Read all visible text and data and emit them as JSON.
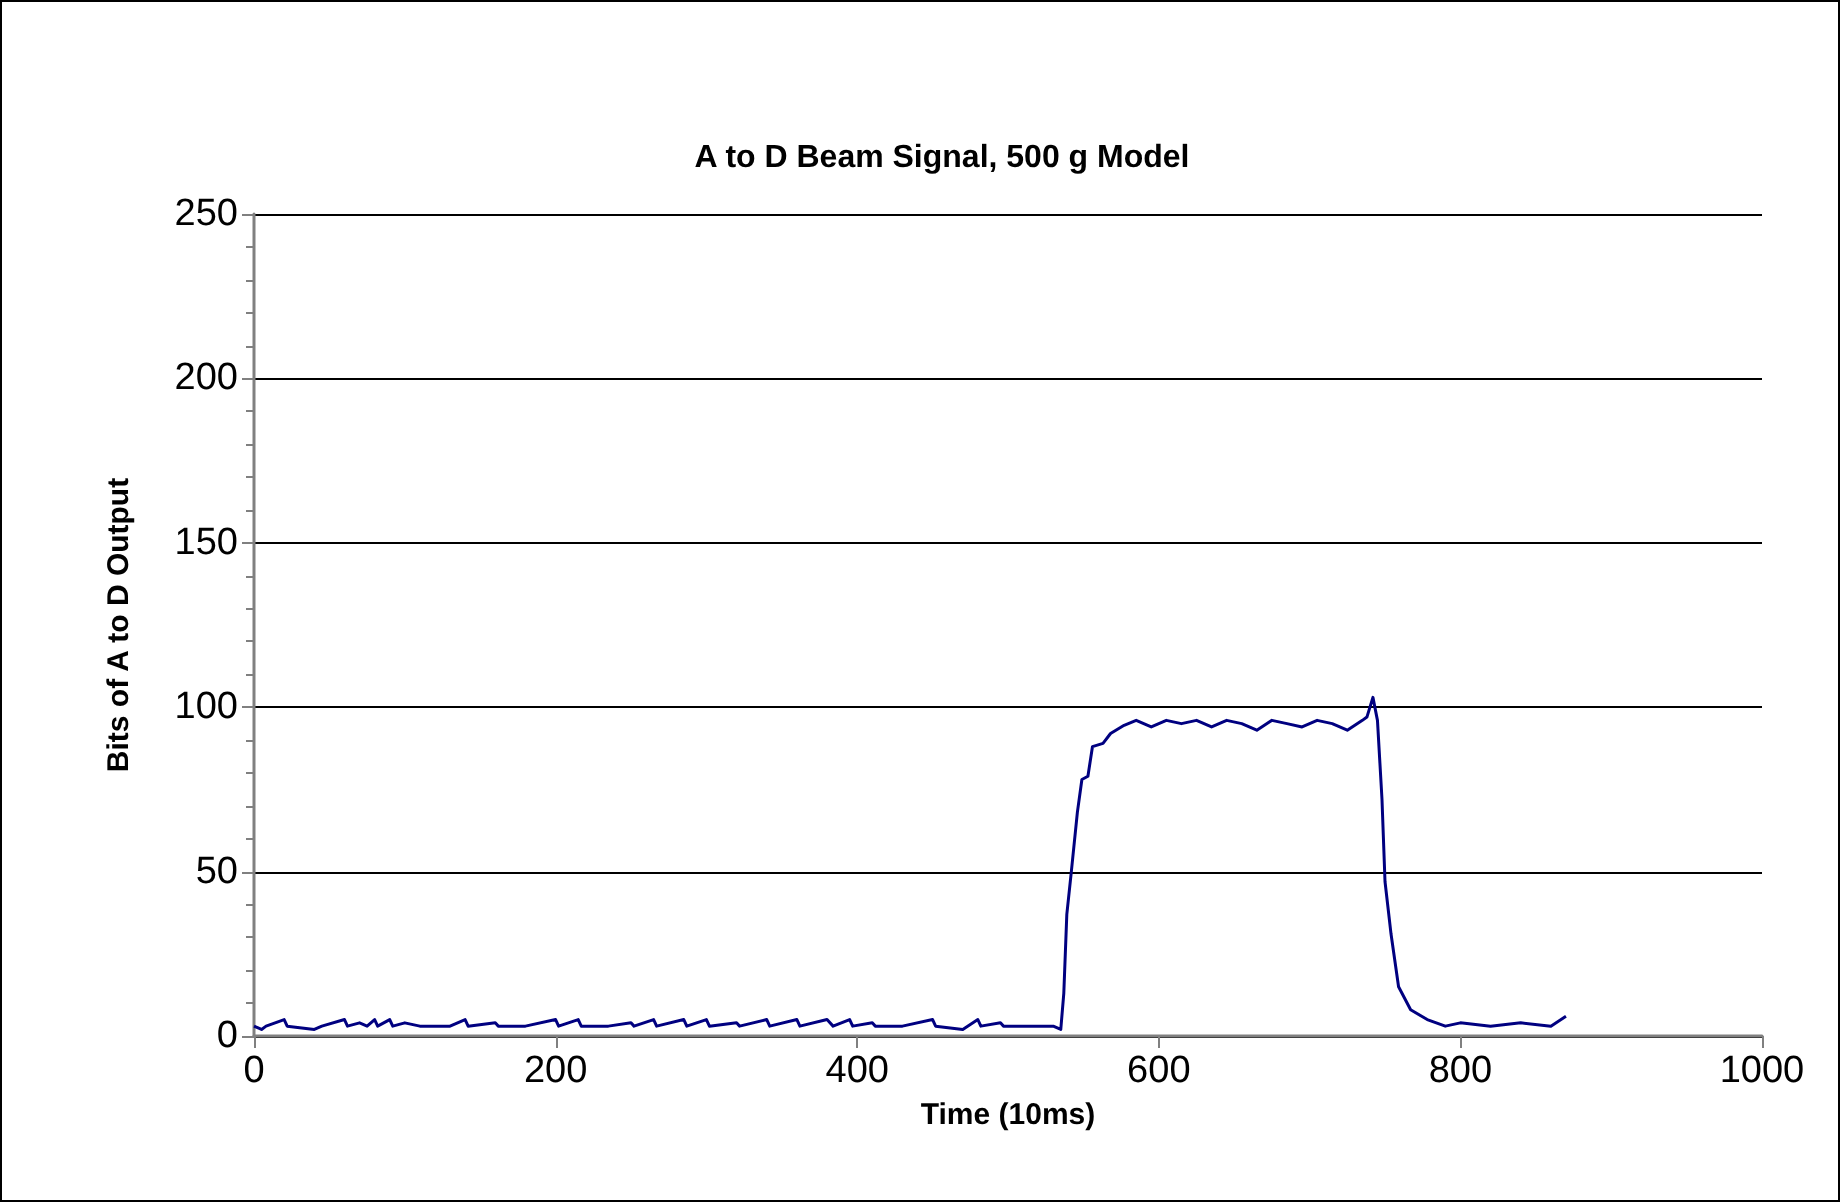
{
  "chart_data": {
    "type": "line",
    "title": "A to D Beam Signal, 500 g Model",
    "xlabel": "Time (10ms)",
    "ylabel": "Bits of A to D Output",
    "xlim": [
      0,
      1000
    ],
    "xticks": [
      0,
      200,
      400,
      600,
      800,
      1000
    ],
    "ylim": [
      0,
      250
    ],
    "yticks": [
      0,
      {
        "value": 10,
        "label": null
      },
      {
        "value": 20,
        "label": null
      },
      {
        "value": 30,
        "label": null
      },
      {
        "value": 40,
        "label": null
      },
      50,
      {
        "value": 60,
        "label": null
      },
      {
        "value": 70,
        "label": null
      },
      {
        "value": 80,
        "label": null
      },
      {
        "value": 90,
        "label": null
      },
      100,
      {
        "value": 110,
        "label": null
      },
      {
        "value": 120,
        "label": null
      },
      {
        "value": 130,
        "label": null
      },
      {
        "value": 140,
        "label": null
      },
      150,
      {
        "value": 160,
        "label": null
      },
      {
        "value": 170,
        "label": null
      },
      {
        "value": 180,
        "label": null
      },
      {
        "value": 190,
        "label": null
      },
      200,
      {
        "value": 210,
        "label": null
      },
      {
        "value": 220,
        "label": null
      },
      {
        "value": 230,
        "label": null
      },
      {
        "value": 240,
        "label": null
      },
      250
    ],
    "grid": "y",
    "marker": "none",
    "line_style": "solid",
    "series": [
      {
        "color": "#000080",
        "x": [
          0,
          5,
          8,
          20,
          22,
          40,
          45,
          60,
          62,
          70,
          75,
          80,
          82,
          90,
          92,
          100,
          110,
          130,
          140,
          142,
          160,
          162,
          180,
          200,
          202,
          215,
          217,
          235,
          250,
          252,
          265,
          267,
          285,
          287,
          300,
          302,
          320,
          322,
          340,
          342,
          360,
          362,
          380,
          384,
          395,
          397,
          410,
          412,
          430,
          450,
          452,
          470,
          480,
          482,
          495,
          497,
          510,
          530,
          535,
          537,
          539,
          542,
          546,
          549,
          553,
          556,
          563,
          568,
          577,
          585,
          595,
          605,
          615,
          625,
          635,
          645,
          655,
          665,
          675,
          685,
          695,
          705,
          715,
          725,
          735,
          738,
          742,
          745,
          748,
          750,
          754,
          759,
          767,
          778,
          790,
          800,
          820,
          840,
          860,
          870
        ],
        "values": [
          3,
          2,
          3,
          5,
          3,
          2,
          3,
          5,
          3,
          4,
          3,
          5,
          3,
          5,
          3,
          4,
          3,
          3,
          5,
          3,
          4,
          3,
          3,
          5,
          3,
          5,
          3,
          3,
          4,
          3,
          5,
          3,
          5,
          3,
          5,
          3,
          4,
          3,
          5,
          3,
          5,
          3,
          5,
          3,
          5,
          3,
          4,
          3,
          3,
          5,
          3,
          2,
          5,
          3,
          4,
          3,
          3,
          3,
          2,
          13,
          37,
          50,
          68,
          78,
          79,
          88,
          89,
          92,
          94.5,
          96,
          94,
          96,
          95,
          96,
          94,
          96,
          95,
          93,
          96,
          95,
          94,
          96,
          95,
          93,
          96,
          97,
          103,
          96,
          72,
          47,
          31,
          15,
          8,
          5,
          3,
          4,
          3,
          4,
          3,
          6
        ]
      }
    ]
  }
}
